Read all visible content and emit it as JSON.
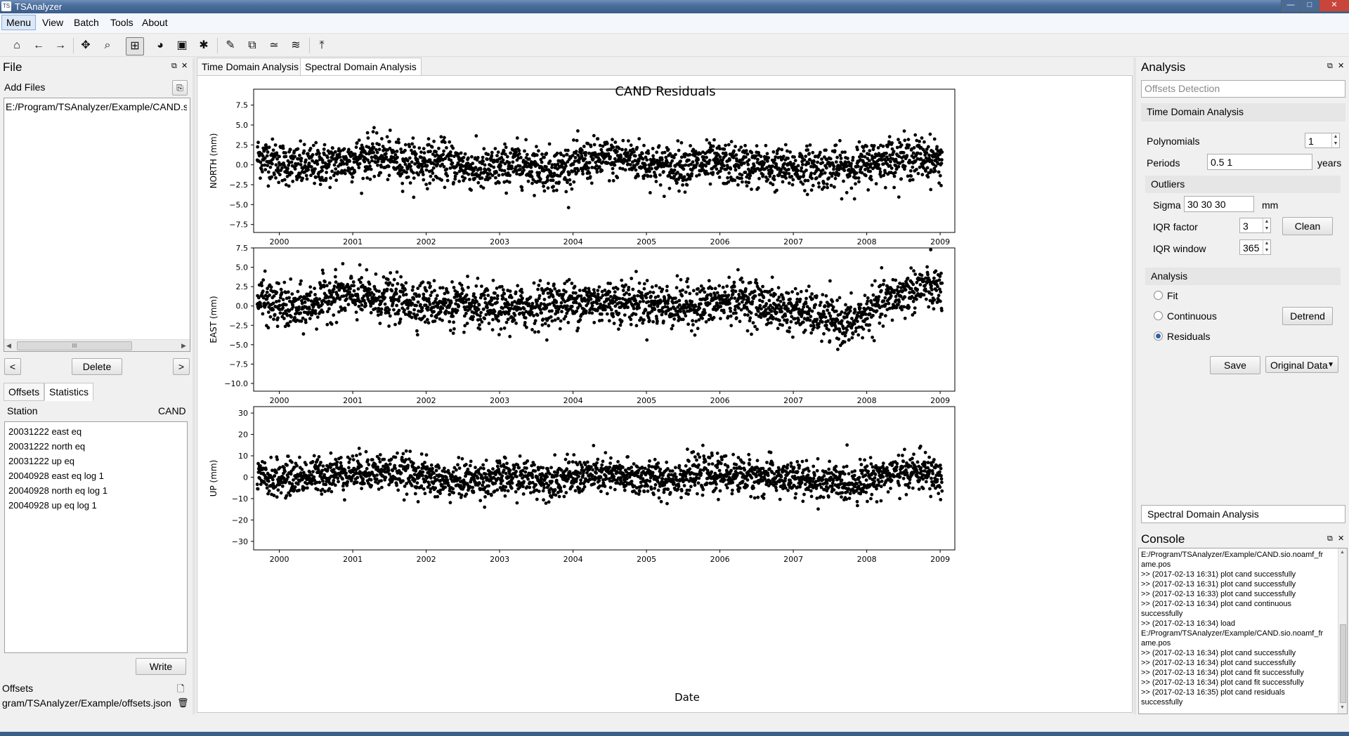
{
  "window": {
    "app_icon": "TS",
    "title": "TSAnalyzer",
    "minimize": "—",
    "maximize": "□",
    "close": "✕"
  },
  "menu": [
    "Menu",
    "View",
    "Batch",
    "Tools",
    "About"
  ],
  "toolbar": {
    "icons": [
      "home-icon",
      "back-arrow-icon",
      "forward-arrow-icon",
      "pan-icon",
      "zoom-icon",
      "grid-icon",
      "ball-icon",
      "image-icon",
      "gear-icon",
      "pen-icon",
      "crop-icon",
      "curve-icon",
      "wave-icon",
      "upload-icon"
    ],
    "glyphs": [
      "⌂",
      "←",
      "→",
      "✥",
      "⌕",
      "⊞",
      "◕",
      "▣",
      "✱",
      "✎",
      "⧉",
      "≃",
      "≋",
      "⤒"
    ]
  },
  "file_dock": {
    "title": "File",
    "add_files_label": "Add Files",
    "files": [
      "E:/Program/TSAnalyzer/Example/CAND.sic"
    ],
    "scroll_grip": "III",
    "prev": "<",
    "delete_label": "Delete",
    "next": ">",
    "tabs": [
      "Offsets",
      "Statistics"
    ],
    "station_label": "Station",
    "station_value": "CAND",
    "offsets_list": [
      "20031222 east eq",
      "20031222 north eq",
      "20031222 up eq",
      "20040928 east eq log 1",
      "20040928 north eq log 1",
      "20040928 up eq log 1"
    ],
    "write_label": "Write",
    "offsets_file_label": "Offsets",
    "offsets_file_path": "gram/TSAnalyzer/Example/offsets.json"
  },
  "center": {
    "tabs": [
      "Time Domain Analysis",
      "Spectral Domain Analysis"
    ],
    "selected_tab": 1
  },
  "analysis_dock": {
    "title": "Analysis",
    "offsets_detection": "Offsets Detection",
    "time_domain_header": "Time Domain Analysis",
    "polynomials_label": "Polynomials",
    "polynomials_value": "1",
    "periods_label": "Periods",
    "periods_value": "0.5 1",
    "periods_unit": "years",
    "outliers_label": "Outliers",
    "sigma_label": "Sigma",
    "sigma_value": "30 30 30",
    "sigma_unit": "mm",
    "iqr_factor_label": "IQR factor",
    "iqr_factor_value": "3",
    "clean_label": "Clean",
    "iqr_window_label": "IQR window",
    "iqr_window_value": "365",
    "analysis_label": "Analysis",
    "radio_fit": "Fit",
    "radio_continuous": "Continuous",
    "radio_residuals": "Residuals",
    "selected_radio": "Residuals",
    "detrend_label": "Detrend",
    "save_label": "Save",
    "data_select": "Original Data",
    "spectral_header": "Spectral Domain Analysis"
  },
  "console": {
    "title": "Console",
    "lines": [
      "E:/Program/TSAnalyzer/Example/CAND.sio.noamf_fr",
      "ame.pos",
      ">> (2017-02-13 16:31) plot cand successfully",
      ">> (2017-02-13 16:31) plot cand successfully",
      ">> (2017-02-13 16:33) plot cand successfully",
      ">> (2017-02-13 16:34) plot cand continuous",
      "successfully",
      ">> (2017-02-13 16:34) load",
      "E:/Program/TSAnalyzer/Example/CAND.sio.noamf_fr",
      "ame.pos",
      ">> (2017-02-13 16:34) plot cand successfully",
      ">> (2017-02-13 16:34) plot cand successfully",
      ">> (2017-02-13 16:34) plot cand fit successfully",
      ">> (2017-02-13 16:34) plot cand fit successfully",
      ">> (2017-02-13 16:35) plot cand residuals",
      "successfully"
    ]
  },
  "chart_data": {
    "type": "scatter",
    "title": "CAND Residuals",
    "xlabel": "Date",
    "x_ticks": [
      "2000",
      "2001",
      "2002",
      "2003",
      "2004",
      "2005",
      "2006",
      "2007",
      "2008",
      "2009"
    ],
    "x_range": [
      1999.65,
      2009.2
    ],
    "marker_color": "#000000",
    "subplots": [
      {
        "ylabel": "NORTH (mm)",
        "ylim": [
          -8.5,
          9.5
        ],
        "y_ticks": [
          "7.5",
          "5.0",
          "2.5",
          "0.0",
          "−2.5",
          "−5.0",
          "−7.5"
        ],
        "y_tick_values": [
          7.5,
          5.0,
          2.5,
          0.0,
          -2.5,
          -5.0,
          -7.5
        ],
        "series": [
          {
            "x": [
              1999.75,
              2000.25,
              2000.75,
              2001.25,
              2001.75,
              2002.25,
              2002.75,
              2003.25,
              2003.75,
              2004.25,
              2004.75,
              2005.25,
              2005.75,
              2006.25,
              2006.75,
              2007.25,
              2007.75,
              2008.25,
              2008.75,
              2009.0
            ],
            "y": [
              1.0,
              -0.3,
              0.2,
              1.2,
              0.3,
              0.5,
              -0.8,
              0.2,
              -0.6,
              0.6,
              0.8,
              -0.2,
              0.1,
              0.0,
              -0.5,
              -0.3,
              -0.4,
              0.8,
              0.9,
              0.5
            ],
            "spread": 1.3
          }
        ]
      },
      {
        "ylabel": "EAST (mm)",
        "ylim": [
          -11.0,
          7.5
        ],
        "y_ticks": [
          "7.5",
          "5.0",
          "2.5",
          "0.0",
          "−2.5",
          "−5.0",
          "−7.5",
          "−10.0"
        ],
        "y_tick_values": [
          7.5,
          5.0,
          2.5,
          0.0,
          -2.5,
          -5.0,
          -7.5,
          -10.0
        ],
        "series": [
          {
            "x": [
              1999.75,
              2000.25,
              2000.75,
              2001.25,
              2001.75,
              2002.25,
              2002.75,
              2003.25,
              2003.75,
              2004.25,
              2004.75,
              2005.25,
              2005.75,
              2006.25,
              2006.75,
              2007.25,
              2007.75,
              2008.25,
              2008.75,
              2009.0
            ],
            "y": [
              0.8,
              -0.6,
              1.5,
              1.0,
              0.6,
              0.2,
              -0.4,
              -0.3,
              0.4,
              0.5,
              0.6,
              0.1,
              0.0,
              1.0,
              -0.2,
              -1.0,
              -2.5,
              0.6,
              2.5,
              2.0
            ],
            "spread": 1.4
          }
        ]
      },
      {
        "ylabel": "UP (mm)",
        "ylim": [
          -34,
          33
        ],
        "y_ticks": [
          "30",
          "20",
          "10",
          "0",
          "−10",
          "−20",
          "−30"
        ],
        "y_tick_values": [
          30,
          20,
          10,
          0,
          -10,
          -20,
          -30
        ],
        "series": [
          {
            "x": [
              1999.75,
              2000.25,
              2000.75,
              2001.25,
              2001.75,
              2002.25,
              2002.75,
              2003.25,
              2003.75,
              2004.25,
              2004.75,
              2005.25,
              2005.75,
              2006.25,
              2006.75,
              2007.25,
              2007.75,
              2008.25,
              2008.75,
              2009.0
            ],
            "y": [
              -1.0,
              0.0,
              2.0,
              3.0,
              2.0,
              -2.0,
              -1.0,
              0.0,
              -1.0,
              1.0,
              0.0,
              -1.0,
              1.5,
              1.0,
              0.0,
              -2.0,
              -3.0,
              1.0,
              3.0,
              -1.0
            ],
            "spread": 4.2
          }
        ]
      }
    ]
  }
}
